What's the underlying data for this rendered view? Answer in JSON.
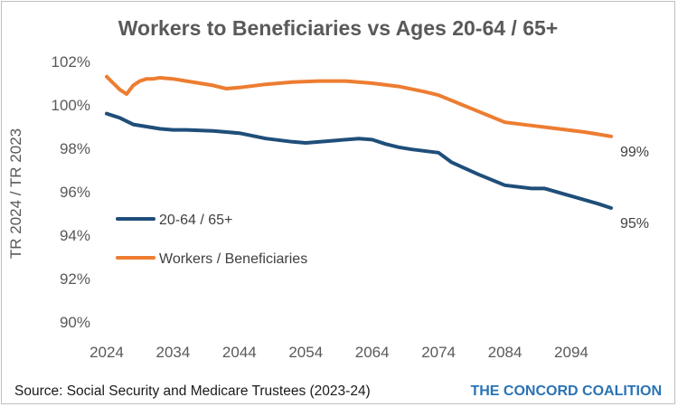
{
  "chart_data": {
    "type": "line",
    "title": "Workers to Beneficiaries vs Ages 20-64 / 65+",
    "xlabel": "",
    "ylabel": "TR 2024 / TR 2023",
    "xlim": [
      2024,
      2100
    ],
    "ylim": [
      90,
      102
    ],
    "x_ticks": [
      2024,
      2034,
      2044,
      2054,
      2064,
      2074,
      2084,
      2094
    ],
    "y_ticks": [
      90,
      92,
      94,
      96,
      98,
      100,
      102
    ],
    "y_tick_labels": [
      "90%",
      "92%",
      "94%",
      "96%",
      "98%",
      "100%",
      "102%"
    ],
    "grid": false,
    "legend_position": "middle-left",
    "series": [
      {
        "name": "20-64 / 65+",
        "color": "#1f4e79",
        "end_label": "95%",
        "x": [
          2024,
          2026,
          2028,
          2030,
          2032,
          2034,
          2036,
          2040,
          2044,
          2048,
          2052,
          2054,
          2058,
          2062,
          2064,
          2066,
          2068,
          2070,
          2074,
          2076,
          2080,
          2084,
          2088,
          2090,
          2094,
          2098,
          2100
        ],
        "y": [
          99.6,
          99.4,
          99.1,
          99.0,
          98.9,
          98.85,
          98.85,
          98.8,
          98.7,
          98.45,
          98.3,
          98.25,
          98.35,
          98.45,
          98.4,
          98.2,
          98.05,
          97.95,
          97.8,
          97.35,
          96.8,
          96.3,
          96.15,
          96.15,
          95.8,
          95.45,
          95.25
        ]
      },
      {
        "name": "Workers / Beneficiaries",
        "color": "#ed7d31",
        "end_label": "99%",
        "x": [
          2024,
          2025,
          2026,
          2027,
          2028,
          2029,
          2030,
          2031,
          2032,
          2034,
          2036,
          2040,
          2042,
          2044,
          2048,
          2052,
          2056,
          2060,
          2064,
          2068,
          2072,
          2074,
          2076,
          2080,
          2084,
          2088,
          2092,
          2096,
          2098,
          2100
        ],
        "y": [
          101.3,
          101.0,
          100.7,
          100.5,
          100.9,
          101.1,
          101.2,
          101.2,
          101.25,
          101.2,
          101.1,
          100.9,
          100.75,
          100.8,
          100.95,
          101.05,
          101.1,
          101.1,
          101.0,
          100.85,
          100.6,
          100.45,
          100.2,
          99.7,
          99.2,
          99.05,
          98.9,
          98.75,
          98.65,
          98.55
        ]
      }
    ]
  },
  "source": "Source: Social Security and Medicare Trustees (2023-24)",
  "brand": {
    "line": "THE CONCORD COALITION",
    "color": "#2a73b5"
  }
}
